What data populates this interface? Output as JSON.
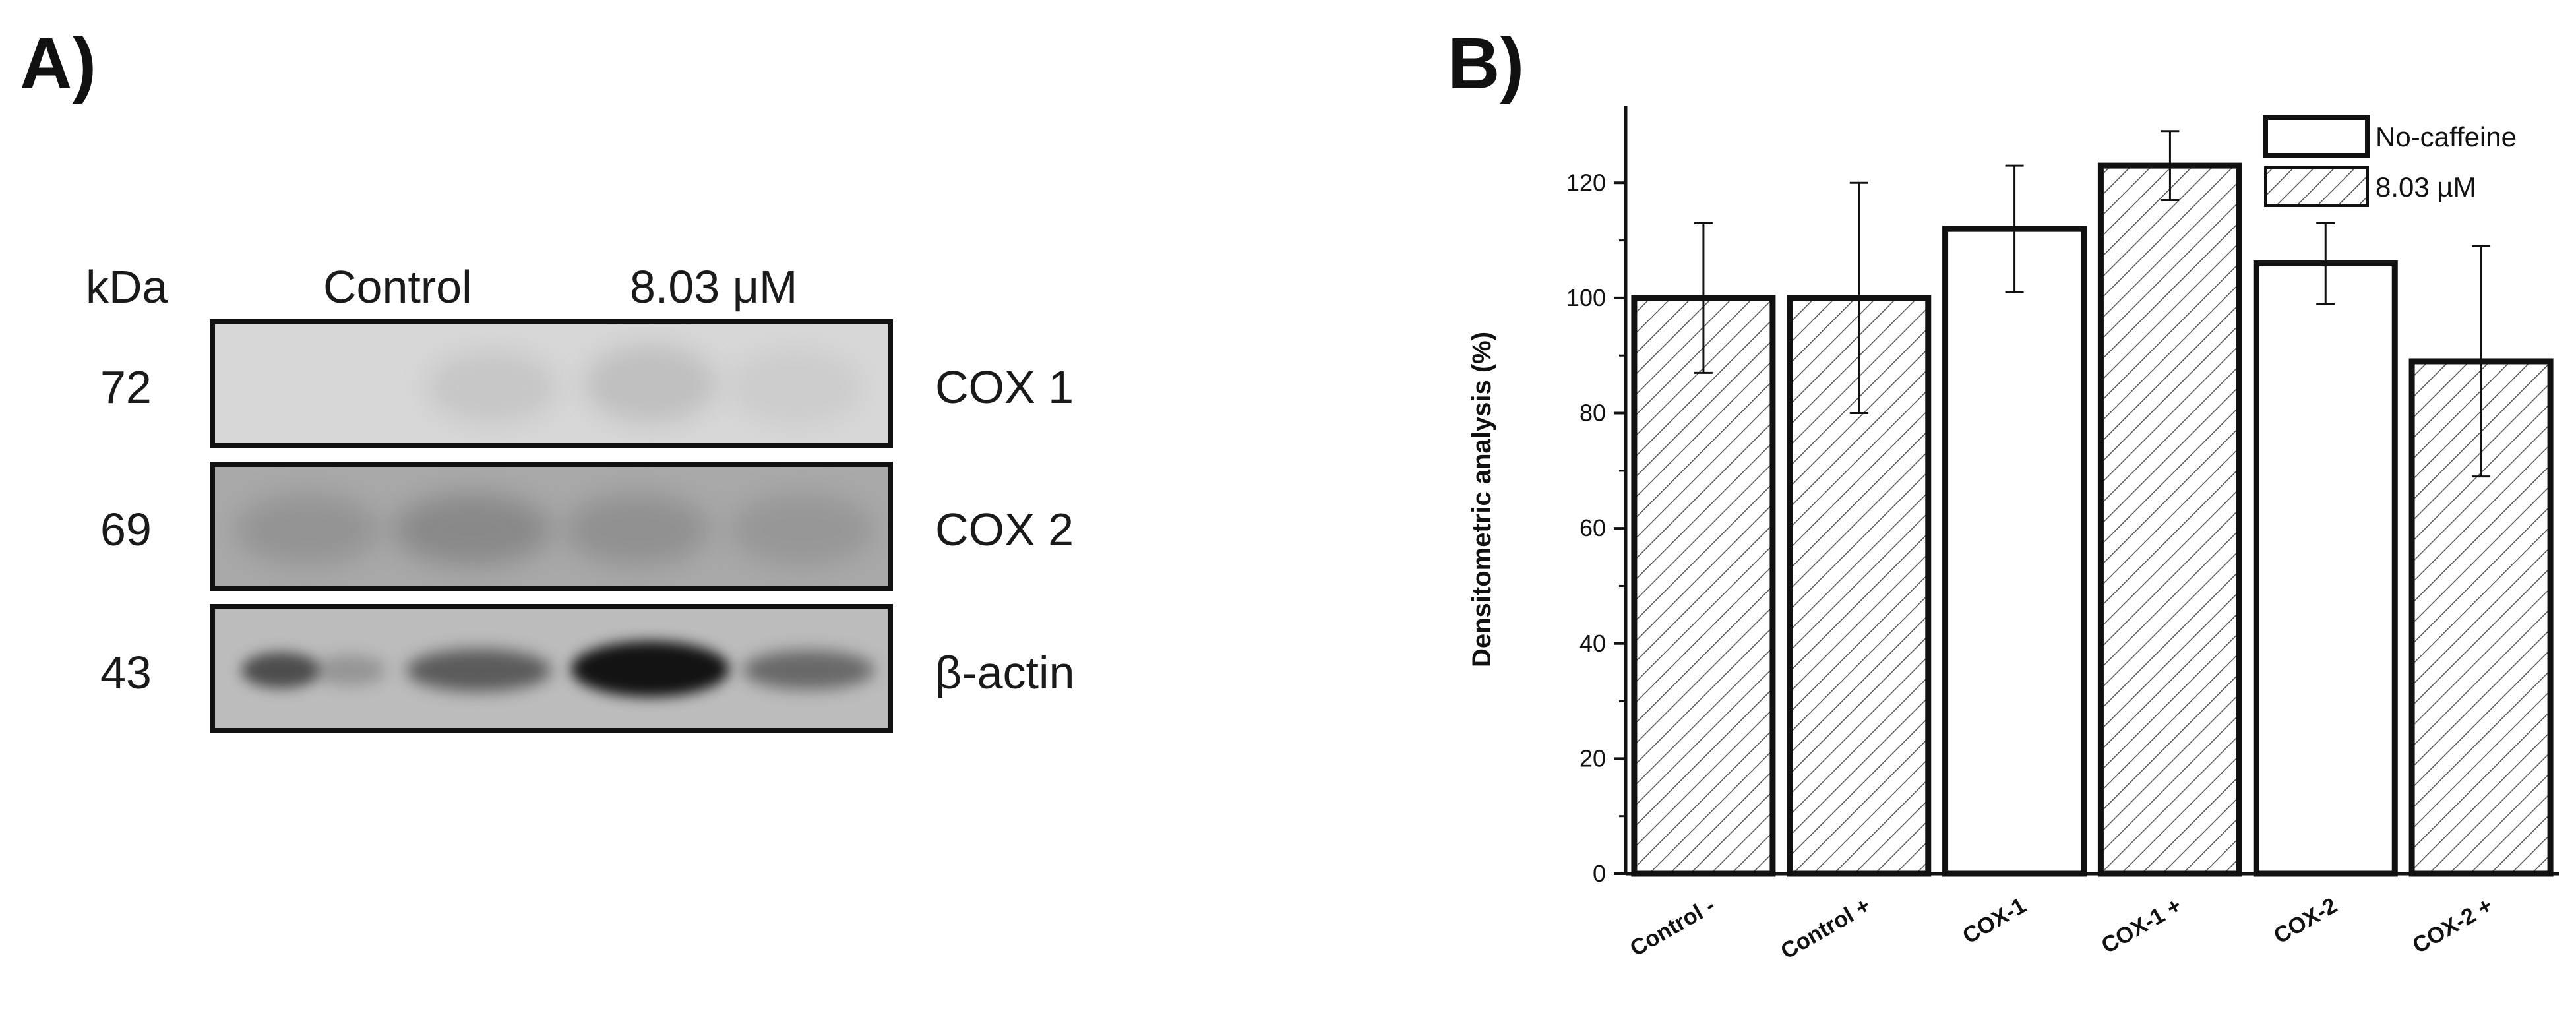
{
  "panel_a": {
    "label": "A)",
    "header_kda": "kDa",
    "header_control": "Control",
    "header_treated": "8.03 μM",
    "rows": [
      {
        "kda": "72",
        "protein": "COX 1",
        "bg": "#d7d7d7"
      },
      {
        "kda": "69",
        "protein": "COX 2",
        "bg": "#a9a9a9"
      },
      {
        "kda": "43",
        "protein": "β-actin",
        "bg": "#bcbcbc"
      }
    ]
  },
  "panel_b": {
    "label": "B)"
  },
  "chart_data": {
    "type": "bar",
    "categories": [
      "Control -",
      "Control +",
      "COX-1",
      "COX-1 +",
      "COX-2",
      "COX-2 +"
    ],
    "values": [
      100,
      100,
      112,
      123,
      106,
      89
    ],
    "errors": [
      13,
      20,
      11,
      6,
      7,
      20
    ],
    "fill": [
      "hatched",
      "hatched",
      "open",
      "hatched",
      "open",
      "hatched"
    ],
    "ylabel": "Densitometric analysis (%)",
    "xlabel": "",
    "ylim": [
      0,
      130
    ],
    "yticks": [
      0,
      20,
      40,
      60,
      80,
      100,
      120
    ],
    "legend": [
      {
        "name": "No-caffeine",
        "fill": "open"
      },
      {
        "name": "8.03 µM",
        "fill": "hatched"
      }
    ],
    "legend_position": "top-right",
    "grid": false
  }
}
